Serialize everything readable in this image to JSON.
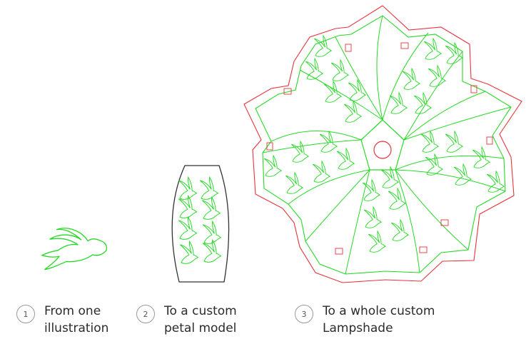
{
  "colors": {
    "cut": "#e6343c",
    "score": "#26d926",
    "outline": "#333333",
    "badge": "#9a9a9a"
  },
  "icons": {
    "bird": "swallow-bird-icon"
  },
  "steps": [
    {
      "number": "1",
      "line1": "From one",
      "line2": "illustration"
    },
    {
      "number": "2",
      "line1": "To a custom",
      "line2": "petal model"
    },
    {
      "number": "3",
      "line1": "To a whole custom",
      "line2": "Lampshade"
    }
  ]
}
